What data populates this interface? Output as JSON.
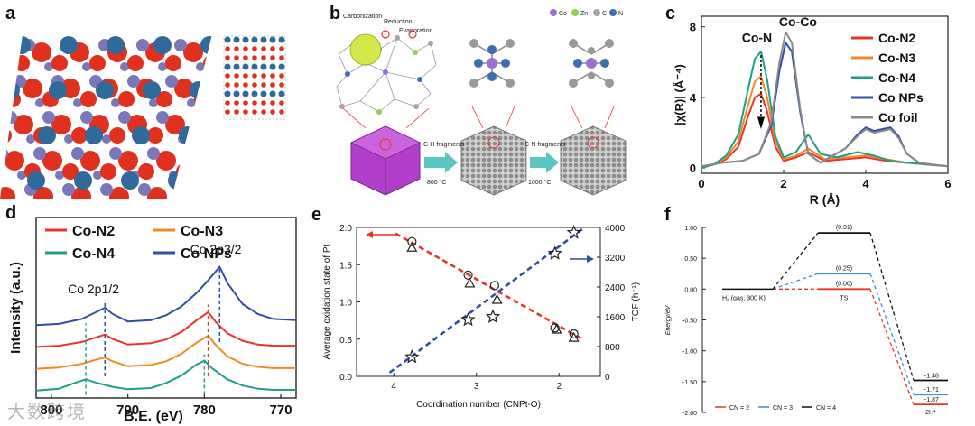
{
  "panels": {
    "a": {
      "label": "a"
    },
    "b": {
      "label": "b",
      "steps": [
        "Carbonization",
        "Reduction",
        "Evaporation"
      ],
      "legend": [
        "Co",
        "Zn",
        "C",
        "N"
      ],
      "legend_colors": [
        "#9b6fd6",
        "#8fd14f",
        "#a6a6a6",
        "#3b6fb0"
      ],
      "arrow1_top": "C-H fragments",
      "arrow1_bottom": "800 °C",
      "arrow2_top": "C-N fragments",
      "arrow2_bottom": "1000 °C"
    },
    "c": {
      "label": "c"
    },
    "d": {
      "label": "d"
    },
    "e": {
      "label": "e"
    },
    "f": {
      "label": "f"
    }
  },
  "watermark": "大数跨境",
  "chart_data": [
    {
      "id": "c",
      "type": "line",
      "xlabel": "R (Å)",
      "ylabel": "|χ(R)| (Å⁻⁴)",
      "xlim": [
        0,
        6
      ],
      "ylim": [
        -0.3,
        8.6
      ],
      "xticks": [
        "0",
        "2",
        "4",
        "6"
      ],
      "yticks": [
        "0",
        "4",
        "8"
      ],
      "annotations": [
        "Co-Co",
        "Co-N"
      ],
      "series": [
        {
          "name": "Co-N2",
          "color": "#e8352a",
          "x": [
            0,
            0.3,
            0.6,
            0.9,
            1.1,
            1.3,
            1.45,
            1.6,
            1.8,
            2.0,
            2.3,
            2.6,
            3.0,
            3.5,
            4.0,
            4.5,
            5.0,
            5.5,
            6.0
          ],
          "y": [
            0,
            0.2,
            0.5,
            1.2,
            2.7,
            4.0,
            4.2,
            3.2,
            1.2,
            0.4,
            0.6,
            0.9,
            0.4,
            0.5,
            0.6,
            0.4,
            0.3,
            0.2,
            0.1
          ]
        },
        {
          "name": "Co-N3",
          "color": "#f08a24",
          "x": [
            0,
            0.3,
            0.6,
            0.9,
            1.1,
            1.3,
            1.45,
            1.6,
            1.8,
            2.0,
            2.3,
            2.6,
            3.0,
            3.5,
            4.0,
            4.5,
            5.0,
            5.5,
            6.0
          ],
          "y": [
            0,
            0.2,
            0.6,
            1.5,
            3.3,
            4.9,
            5.2,
            4.0,
            1.5,
            0.5,
            0.7,
            1.1,
            0.5,
            0.6,
            0.7,
            0.5,
            0.3,
            0.2,
            0.1
          ]
        },
        {
          "name": "Co-N4",
          "color": "#1f9e8c",
          "x": [
            0,
            0.3,
            0.6,
            0.9,
            1.1,
            1.3,
            1.45,
            1.6,
            1.8,
            2.0,
            2.3,
            2.6,
            2.9,
            3.3,
            3.8,
            4.2,
            4.6,
            5.0,
            5.5,
            6.0
          ],
          "y": [
            0,
            0.2,
            0.7,
            1.9,
            4.1,
            6.2,
            6.6,
            5.0,
            1.8,
            0.6,
            0.9,
            1.9,
            0.8,
            0.6,
            0.9,
            0.7,
            0.4,
            0.3,
            0.2,
            0.1
          ]
        },
        {
          "name": "Co NPs",
          "color": "#2e4fa8",
          "x": [
            0,
            0.5,
            1.0,
            1.4,
            1.7,
            1.9,
            2.05,
            2.2,
            2.4,
            2.6,
            2.9,
            3.2,
            3.5,
            3.8,
            4.0,
            4.2,
            4.4,
            4.6,
            4.8,
            5.0,
            5.3,
            5.6,
            6.0
          ],
          "y": [
            0.1,
            0.3,
            0.4,
            0.8,
            2.4,
            5.5,
            7.1,
            6.6,
            3.2,
            0.8,
            0.3,
            0.7,
            1.1,
            1.9,
            2.3,
            2.1,
            2.2,
            2.3,
            1.8,
            0.8,
            0.3,
            0.2,
            0.1
          ]
        },
        {
          "name": "Co foil",
          "color": "#8a8a8a",
          "x": [
            0,
            0.5,
            1.0,
            1.4,
            1.7,
            1.9,
            2.05,
            2.2,
            2.4,
            2.6,
            2.9,
            3.2,
            3.5,
            3.8,
            4.0,
            4.2,
            4.4,
            4.6,
            4.8,
            5.0,
            5.3,
            5.6,
            6.0
          ],
          "y": [
            0.1,
            0.3,
            0.4,
            0.8,
            2.6,
            6.0,
            7.7,
            7.1,
            3.4,
            0.8,
            0.3,
            0.7,
            1.1,
            1.8,
            2.2,
            2.0,
            2.1,
            2.2,
            1.7,
            0.8,
            0.3,
            0.2,
            0.1
          ]
        }
      ]
    },
    {
      "id": "d",
      "type": "line",
      "xlabel": "B.E. (eV)",
      "ylabel": "Intensity (a.u.)",
      "xlim": [
        802,
        768
      ],
      "xticks": [
        "800",
        "790",
        "780",
        "770"
      ],
      "annotations": [
        "Co 2p1/2",
        "Co 2p3/2"
      ],
      "series": [
        {
          "name": "Co-N2",
          "color": "#e8352a",
          "offset": 0.8,
          "x": [
            802,
            799,
            796,
            794,
            793,
            792,
            790,
            787,
            785,
            783,
            781,
            779.5,
            778.5,
            777,
            775,
            773,
            771,
            768
          ],
          "y": [
            0.62,
            0.64,
            0.7,
            0.78,
            0.82,
            0.75,
            0.66,
            0.68,
            0.74,
            0.86,
            1.05,
            1.18,
            1.02,
            0.84,
            0.72,
            0.66,
            0.64,
            0.64
          ]
        },
        {
          "name": "Co-N3",
          "color": "#f08a24",
          "offset": 0.45,
          "x": [
            802,
            799,
            796,
            794,
            793,
            792,
            790,
            787,
            785,
            783,
            781,
            779.5,
            778.5,
            777,
            775,
            773,
            771,
            768
          ],
          "y": [
            0.62,
            0.64,
            0.7,
            0.77,
            0.8,
            0.74,
            0.66,
            0.68,
            0.74,
            0.86,
            1.04,
            1.15,
            1.0,
            0.82,
            0.7,
            0.65,
            0.63,
            0.63
          ]
        },
        {
          "name": "Co-N4",
          "color": "#1f9e8c",
          "offset": 0.1,
          "x": [
            802,
            799,
            797,
            795.5,
            794,
            792,
            790,
            787,
            785,
            783,
            781,
            780,
            779,
            777,
            775,
            773,
            771,
            768
          ],
          "y": [
            0.62,
            0.65,
            0.74,
            0.8,
            0.74,
            0.68,
            0.64,
            0.66,
            0.74,
            0.86,
            1.04,
            1.1,
            0.98,
            0.8,
            0.7,
            0.65,
            0.63,
            0.63
          ]
        },
        {
          "name": "Co NPs",
          "color": "#2e4fa8",
          "offset": 1.15,
          "x": [
            802,
            799,
            796,
            794,
            793,
            792,
            790,
            787,
            785,
            783,
            781,
            779.5,
            778,
            777,
            775,
            773,
            771,
            768
          ],
          "y": [
            0.62,
            0.64,
            0.72,
            0.84,
            0.9,
            0.8,
            0.68,
            0.7,
            0.78,
            0.92,
            1.14,
            1.34,
            1.56,
            1.3,
            0.96,
            0.8,
            0.72,
            0.7
          ]
        }
      ]
    },
    {
      "id": "e",
      "type": "scatter",
      "xlabel": "Coordination number (CNPt-O)",
      "ylabel": "Average oxidation state of Pt",
      "y2label": "TOF (h⁻¹)",
      "xlim": [
        4.45,
        1.5
      ],
      "ylim": [
        0,
        2.0
      ],
      "y2lim": [
        0,
        4000
      ],
      "xticks": [
        "4",
        "3",
        "2"
      ],
      "yticks": [
        "0.0",
        "0.5",
        "1.0",
        "1.5",
        "2.0"
      ],
      "y2ticks": [
        "0",
        "800",
        "1600",
        "2400",
        "3200",
        "4000"
      ],
      "series": [
        {
          "name": "Oxidation state (circle)",
          "color": "#e8352a",
          "x": [
            3.78,
            3.1,
            2.78,
            2.05,
            1.82
          ],
          "y": [
            1.81,
            1.36,
            1.22,
            0.65,
            0.57
          ]
        },
        {
          "name": "Oxidation state (triangle)",
          "color": "#e8352a",
          "x": [
            3.78,
            3.08,
            2.75,
            2.03,
            1.82
          ],
          "y": [
            1.73,
            1.25,
            1.03,
            0.63,
            0.52
          ]
        },
        {
          "name": "TOF (star)",
          "color": "#2e4fa8",
          "axis": "y2",
          "x": [
            3.78,
            3.1,
            2.8,
            2.05,
            1.82
          ],
          "y": [
            520,
            1520,
            1600,
            3300,
            3860
          ]
        }
      ],
      "fit_lines": [
        {
          "axis": "y",
          "color": "#e8352a",
          "x": [
            3.98,
            1.72
          ],
          "y": [
            1.92,
            0.5
          ]
        },
        {
          "axis": "y2",
          "color": "#2e4fa8",
          "x": [
            4.05,
            1.72
          ],
          "y": [
            100,
            3950
          ]
        }
      ]
    },
    {
      "id": "f",
      "type": "line",
      "ylabel": "Energy/eV",
      "ylim": [
        -2.0,
        1.0
      ],
      "yticks": [
        "1.00",
        "0.50",
        "0.00",
        "-0.50",
        "-1.00",
        "-1.50",
        "-2.00"
      ],
      "state_labels": [
        "H₂ (gas, 300 K)",
        "TS",
        "2H*"
      ],
      "levels": [
        {
          "name": "CN = 2",
          "color": "#e8352a",
          "ts": 0.0,
          "ts_label": "(0.00)",
          "final": -1.87,
          "final_label": "−1.87"
        },
        {
          "name": "CN = 3",
          "color": "#3b8fd6",
          "ts": 0.25,
          "ts_label": "(0.25)",
          "final": -1.71,
          "final_label": "−1.71"
        },
        {
          "name": "CN = 4",
          "color": "#111111",
          "ts": 0.91,
          "ts_label": "(0.91)",
          "final": -1.48,
          "final_label": "−1.48"
        }
      ]
    }
  ]
}
